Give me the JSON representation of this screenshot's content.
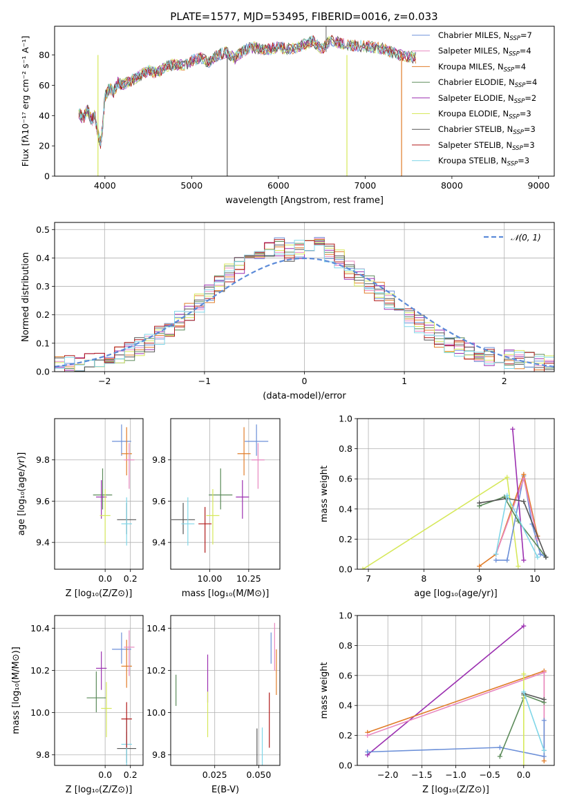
{
  "figure": {
    "title": "PLATE=1577, MJD=53495, FIBERID=0016, z=0.033"
  },
  "chart_data": [
    {
      "id": "spectrum",
      "type": "line",
      "xlabel": "wavelength [Angstrom, rest frame]",
      "ylabel": "Flux [fλ10⁻¹⁷ erg cm⁻² s⁻¹ A⁻¹]",
      "xlim": [
        3420,
        9180
      ],
      "ylim": [
        0,
        99
      ],
      "xticks": [
        4000,
        5000,
        6000,
        7000,
        8000,
        9000
      ],
      "yticks": [
        0,
        20,
        40,
        60,
        80
      ],
      "grid": false,
      "legend_position": "right",
      "x": [
        3700,
        3750,
        3800,
        3850,
        3880,
        3920,
        3950,
        3970,
        4000,
        4050,
        4100,
        4150,
        4200,
        4300,
        4400,
        4500,
        4600,
        4700,
        4800,
        4900,
        5000,
        5100,
        5200,
        5300,
        5400,
        5500,
        5600,
        5700,
        5800,
        5900,
        6000,
        6100,
        6200,
        6300,
        6400,
        6500,
        6600,
        6700,
        6800,
        6900,
        7000,
        7100,
        7200,
        7300,
        7400,
        7500,
        7600
      ],
      "y": [
        42,
        38,
        44,
        36,
        41,
        28,
        22,
        30,
        52,
        58,
        55,
        62,
        60,
        63,
        66,
        70,
        68,
        72,
        74,
        73,
        76,
        78,
        75,
        80,
        82,
        78,
        83,
        85,
        84,
        84,
        85,
        84,
        85,
        87,
        89,
        84,
        90,
        88,
        87,
        86,
        86,
        85,
        84,
        82,
        80,
        79,
        78
      ],
      "series": [
        {
          "name": "Chabrier MILES, N",
          "sub": "SSP",
          "n": "=7",
          "color": "#6b8fd8"
        },
        {
          "name": "Salpeter MILES, N",
          "sub": "SSP",
          "n": "=4",
          "color": "#e888c0"
        },
        {
          "name": "Kroupa MILES, N",
          "sub": "SSP",
          "n": "=4",
          "color": "#e07c28"
        },
        {
          "name": "Chabrier ELODIE, N",
          "sub": "SSP",
          "n": "=4",
          "color": "#5a8a58"
        },
        {
          "name": "Salpeter ELODIE, N",
          "sub": "SSP",
          "n": "=2",
          "color": "#9b2fb0"
        },
        {
          "name": "Kroupa ELODIE, N",
          "sub": "SSP",
          "n": "=3",
          "color": "#d6e85a"
        },
        {
          "name": "Chabrier STELIB, N",
          "sub": "SSP",
          "n": "=3",
          "color": "#555555"
        },
        {
          "name": "Salpeter STELIB, N",
          "sub": "SSP",
          "n": "=3",
          "color": "#b01818"
        },
        {
          "name": "Kroupa STELIB, N",
          "sub": "SSP",
          "n": "=3",
          "color": "#7fd6e8"
        }
      ]
    },
    {
      "id": "residuals",
      "type": "line",
      "xlabel": "(data-model)/error",
      "ylabel": "Normed distribution",
      "xlim": [
        -2.5,
        2.5
      ],
      "ylim": [
        0,
        0.525
      ],
      "xticks": [
        -2,
        -1,
        0,
        1,
        2
      ],
      "yticks": [
        0.0,
        0.1,
        0.2,
        0.3,
        0.4,
        0.5
      ],
      "grid": true,
      "legend_position": "top-right",
      "legend": "𝒩(0, 1)",
      "gaussian": {
        "mu": 0,
        "sigma": 1,
        "color": "#5b8ad8"
      },
      "x": [
        -2.5,
        -2.4,
        -2.3,
        -2.2,
        -2.1,
        -2.0,
        -1.9,
        -1.8,
        -1.7,
        -1.6,
        -1.5,
        -1.4,
        -1.3,
        -1.2,
        -1.1,
        -1.0,
        -0.9,
        -0.8,
        -0.7,
        -0.6,
        -0.5,
        -0.4,
        -0.3,
        -0.2,
        -0.1,
        0.0,
        0.1,
        0.2,
        0.3,
        0.4,
        0.5,
        0.6,
        0.7,
        0.8,
        0.9,
        1.0,
        1.1,
        1.2,
        1.3,
        1.4,
        1.5,
        1.6,
        1.7,
        1.8,
        1.9,
        2.0,
        2.1,
        2.2,
        2.3,
        2.4
      ],
      "y": [
        0.02,
        0.025,
        0.03,
        0.035,
        0.045,
        0.05,
        0.06,
        0.07,
        0.085,
        0.1,
        0.13,
        0.15,
        0.18,
        0.21,
        0.24,
        0.27,
        0.31,
        0.35,
        0.37,
        0.4,
        0.42,
        0.44,
        0.44,
        0.42,
        0.43,
        0.43,
        0.44,
        0.42,
        0.4,
        0.36,
        0.33,
        0.31,
        0.28,
        0.25,
        0.22,
        0.19,
        0.17,
        0.14,
        0.12,
        0.1,
        0.085,
        0.07,
        0.065,
        0.055,
        0.05,
        0.045,
        0.04,
        0.035,
        0.03,
        0.025
      ]
    },
    {
      "id": "age_vs_Z",
      "type": "scatter",
      "xlabel": "Z [log₁₀(Z/Z⊙)]",
      "ylabel": "age  [log₁₀(age/yr)]",
      "xlim": [
        -0.4,
        0.3
      ],
      "ylim": [
        9.27,
        10.0
      ],
      "xticks": [
        0.0,
        0.2
      ],
      "yticks": [
        9.4,
        9.6,
        9.8
      ],
      "grid": true,
      "points": [
        {
          "x": 0.13,
          "y": 9.89,
          "color": "#6b8fd8"
        },
        {
          "x": 0.17,
          "y": 9.83,
          "color": "#e07c28"
        },
        {
          "x": 0.19,
          "y": 9.8,
          "color": "#e888c0"
        },
        {
          "x": -0.02,
          "y": 9.63,
          "color": "#5a8a58"
        },
        {
          "x": -0.03,
          "y": 9.62,
          "color": "#9b2fb0"
        },
        {
          "x": 0.0,
          "y": 9.53,
          "color": "#d6e85a"
        },
        {
          "x": 0.17,
          "y": 9.51,
          "color": "#555555"
        },
        {
          "x": 0.17,
          "y": 9.49,
          "color": "#7fd6e8"
        }
      ]
    },
    {
      "id": "age_vs_mass",
      "type": "scatter",
      "xlabel": "mass [log₁₀(M/M⊙)]",
      "ylabel": "",
      "xlim": [
        9.75,
        10.45
      ],
      "ylim": [
        9.27,
        10.0
      ],
      "xticks": [
        10.0,
        10.25
      ],
      "yticks": [
        9.4,
        9.6,
        9.8
      ],
      "grid": true,
      "points": [
        {
          "x": 10.3,
          "y": 9.89,
          "color": "#6b8fd8"
        },
        {
          "x": 10.22,
          "y": 9.83,
          "color": "#e07c28"
        },
        {
          "x": 10.31,
          "y": 9.8,
          "color": "#e888c0"
        },
        {
          "x": 10.07,
          "y": 9.63,
          "color": "#5a8a58"
        },
        {
          "x": 10.21,
          "y": 9.62,
          "color": "#9b2fb0"
        },
        {
          "x": 10.02,
          "y": 9.53,
          "color": "#d6e85a"
        },
        {
          "x": 9.83,
          "y": 9.51,
          "color": "#555555"
        },
        {
          "x": 9.86,
          "y": 9.49,
          "color": "#7fd6e8"
        },
        {
          "x": 9.97,
          "y": 9.49,
          "color": "#b01818"
        }
      ]
    },
    {
      "id": "weight_vs_age",
      "type": "line",
      "xlabel": "age  [log₁₀(age/yr)]",
      "ylabel": "mass weight",
      "xlim": [
        6.8,
        10.35
      ],
      "ylim": [
        0,
        1
      ],
      "xticks": [
        7,
        8,
        9,
        10
      ],
      "yticks": [
        0.0,
        0.2,
        0.4,
        0.6,
        0.8,
        1.0
      ],
      "grid": true,
      "series": [
        {
          "color": "#d6e85a",
          "x": [
            6.9,
            9.5,
            9.7
          ],
          "y": [
            0.0,
            0.61,
            0.02
          ]
        },
        {
          "color": "#6b8fd8",
          "x": [
            9.3,
            9.5,
            9.8,
            9.95,
            10.1,
            10.2
          ],
          "y": [
            0.06,
            0.06,
            0.62,
            0.3,
            0.1,
            0.08
          ]
        },
        {
          "color": "#e07c28",
          "x": [
            9.0,
            9.3,
            9.8,
            10.05
          ],
          "y": [
            0.02,
            0.1,
            0.63,
            0.22
          ]
        },
        {
          "color": "#e888c0",
          "x": [
            9.3,
            9.8,
            10.05
          ],
          "y": [
            0.1,
            0.6,
            0.2
          ]
        },
        {
          "color": "#9b2fb0",
          "x": [
            9.6,
            9.8
          ],
          "y": [
            0.93,
            0.06
          ]
        },
        {
          "color": "#5a8a58",
          "x": [
            9.0,
            9.45,
            9.7,
            10.2
          ],
          "y": [
            0.42,
            0.48,
            0.32,
            0.08
          ]
        },
        {
          "color": "#555555",
          "x": [
            9.0,
            9.5,
            9.8,
            10.2
          ],
          "y": [
            0.44,
            0.47,
            0.45,
            0.08
          ]
        },
        {
          "color": "#7fd6e8",
          "x": [
            9.3,
            9.5,
            10.05
          ],
          "y": [
            0.1,
            0.49,
            0.08
          ]
        }
      ]
    },
    {
      "id": "mass_vs_Z",
      "type": "scatter",
      "xlabel": "Z [log₁₀(Z/Z⊙)]",
      "ylabel": "mass [log₁₀(M/M⊙)]",
      "xlim": [
        -0.4,
        0.3
      ],
      "ylim": [
        9.75,
        10.46
      ],
      "xticks": [
        0.0,
        0.2
      ],
      "yticks": [
        9.8,
        10.0,
        10.2,
        10.4
      ],
      "grid": true,
      "points": [
        {
          "x": 0.13,
          "y": 10.3,
          "color": "#6b8fd8"
        },
        {
          "x": 0.17,
          "y": 10.22,
          "color": "#e07c28"
        },
        {
          "x": 0.19,
          "y": 10.31,
          "color": "#e888c0"
        },
        {
          "x": -0.07,
          "y": 10.07,
          "color": "#5a8a58"
        },
        {
          "x": -0.03,
          "y": 10.21,
          "color": "#9b2fb0"
        },
        {
          "x": 0.01,
          "y": 10.02,
          "color": "#d6e85a"
        },
        {
          "x": 0.17,
          "y": 9.83,
          "color": "#555555"
        },
        {
          "x": 0.17,
          "y": 9.85,
          "color": "#7fd6e8"
        },
        {
          "x": 0.17,
          "y": 9.97,
          "color": "#b01818"
        }
      ]
    },
    {
      "id": "mass_vs_EBV",
      "type": "scatter",
      "xlabel": "E(B-V)",
      "ylabel": "",
      "xlim": [
        0.0,
        0.062
      ],
      "ylim": [
        9.75,
        10.46
      ],
      "xticks": [
        0.025,
        0.05
      ],
      "yticks": [
        9.8,
        10.0,
        10.2,
        10.4
      ],
      "grid": true,
      "points": [
        {
          "x": 0.003,
          "y": 10.1,
          "color": "#5a8a58"
        },
        {
          "x": 0.021,
          "y": 10.15,
          "color": "#9b2fb0"
        },
        {
          "x": 0.021,
          "y": 10.02,
          "color": "#d6e85a"
        },
        {
          "x": 0.049,
          "y": 9.8,
          "color": "#555555"
        },
        {
          "x": 0.052,
          "y": 9.85,
          "color": "#7fd6e8"
        },
        {
          "x": 0.056,
          "y": 9.97,
          "color": "#b01818"
        },
        {
          "x": 0.057,
          "y": 10.3,
          "color": "#6b8fd8"
        },
        {
          "x": 0.059,
          "y": 10.3,
          "color": "#e888c0"
        },
        {
          "x": 0.06,
          "y": 10.22,
          "color": "#e07c28"
        }
      ]
    },
    {
      "id": "weight_vs_Z",
      "type": "line",
      "xlabel": "Z [log₁₀(Z/Z⊙)]",
      "ylabel": "mass weight",
      "xlim": [
        -2.45,
        0.45
      ],
      "ylim": [
        0,
        1
      ],
      "xticks": [
        -2.0,
        -1.5,
        -1.0,
        -0.5,
        0.0
      ],
      "yticks": [
        0.0,
        0.2,
        0.4,
        0.6,
        0.8,
        1.0
      ],
      "grid": true,
      "series": [
        {
          "color": "#9b2fb0",
          "x": [
            -2.3,
            0.0
          ],
          "y": [
            0.07,
            0.93
          ]
        },
        {
          "color": "#e07c28",
          "x": [
            -2.3,
            0.3,
            0.3
          ],
          "y": [
            0.22,
            0.63,
            0.03
          ]
        },
        {
          "color": "#e888c0",
          "x": [
            -2.3,
            0.3,
            0.3
          ],
          "y": [
            0.2,
            0.62,
            0.1
          ]
        },
        {
          "color": "#6b8fd8",
          "x": [
            -2.3,
            -0.35,
            0.3,
            0.3
          ],
          "y": [
            0.09,
            0.12,
            0.06,
            0.3
          ]
        },
        {
          "color": "#5a8a58",
          "x": [
            -0.35,
            0.0,
            0.0,
            0.3
          ],
          "y": [
            0.06,
            0.45,
            0.47,
            0.42
          ]
        },
        {
          "color": "#d6e85a",
          "x": [
            0.0,
            0.0
          ],
          "y": [
            0.0,
            0.61
          ]
        },
        {
          "color": "#555555",
          "x": [
            0.0,
            0.3
          ],
          "y": [
            0.48,
            0.44
          ]
        },
        {
          "color": "#7fd6e8",
          "x": [
            0.0,
            0.3
          ],
          "y": [
            0.49,
            0.1
          ]
        }
      ]
    }
  ]
}
